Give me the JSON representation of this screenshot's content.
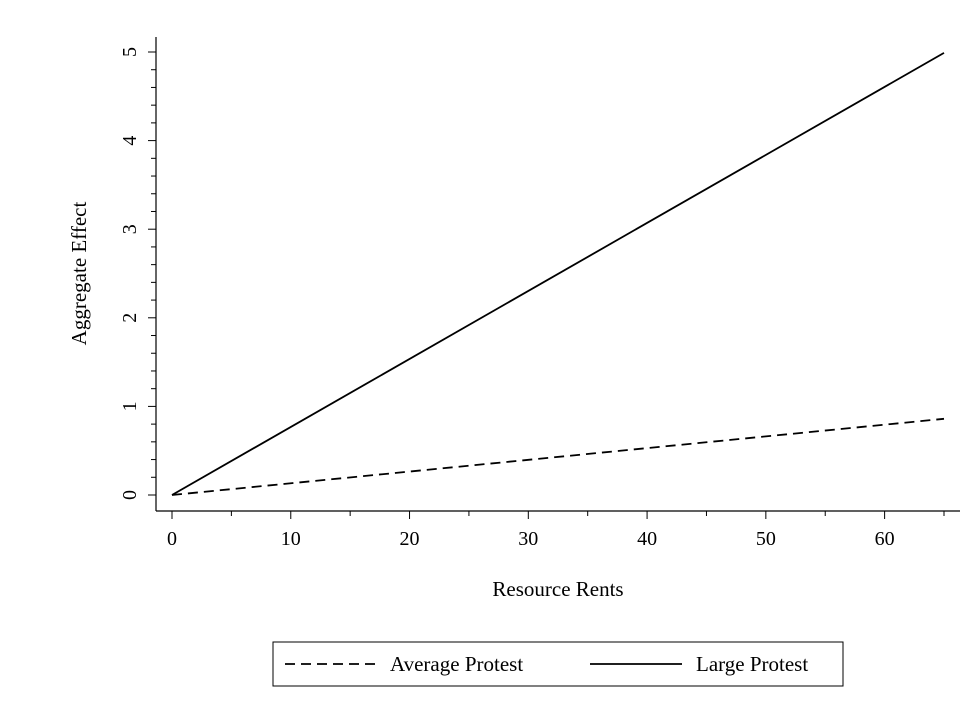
{
  "chart_data": {
    "type": "line",
    "title": "",
    "xlabel": "Resource Rents",
    "ylabel": "Aggregate Effect",
    "xlim": [
      0,
      65
    ],
    "ylim": [
      0,
      5
    ],
    "xticks": [
      0,
      10,
      20,
      30,
      40,
      50,
      60
    ],
    "xticks_minor": [
      5,
      15,
      25,
      35,
      45,
      55,
      65
    ],
    "yticks": [
      0,
      1,
      2,
      3,
      4,
      5
    ],
    "yticks_minor": [
      0.2,
      0.4,
      0.6,
      0.8,
      1.2,
      1.4,
      1.6,
      1.8,
      2.2,
      2.4,
      2.6,
      2.8,
      3.2,
      3.4,
      3.6,
      3.8,
      4.2,
      4.4,
      4.6,
      4.8
    ],
    "grid": false,
    "legend_position": "bottom",
    "series": [
      {
        "name": "Average Protest",
        "style": "dashed",
        "color": "#000000",
        "x": [
          0,
          65
        ],
        "y": [
          0,
          0.86
        ]
      },
      {
        "name": "Large Protest",
        "style": "solid",
        "color": "#000000",
        "x": [
          0,
          65
        ],
        "y": [
          0,
          4.99
        ]
      }
    ]
  }
}
